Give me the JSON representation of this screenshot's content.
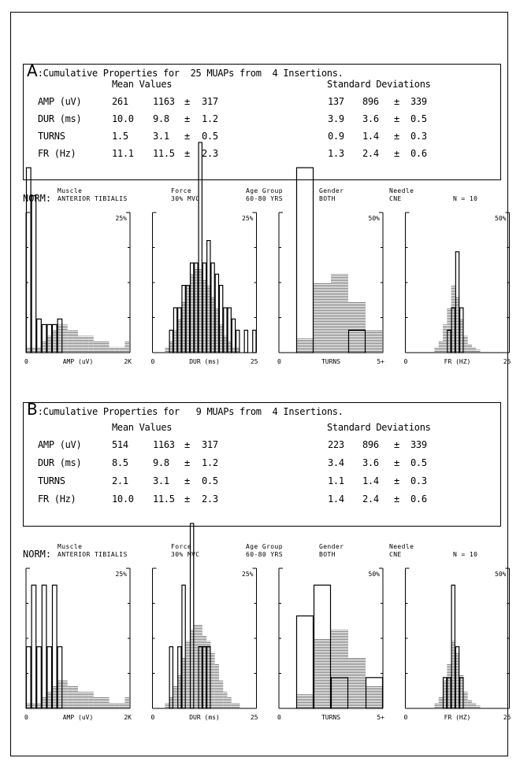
{
  "panels": [
    {
      "letter": "A",
      "title_pre": ":Cumulative Properties for",
      "count": "25",
      "title_mid": "MUAPs from",
      "insertions": "4",
      "title_post": "Insertions.",
      "mean_header": "Mean Values",
      "sd_header": "Standard Deviations",
      "pm": "±",
      "rows": [
        {
          "label": "AMP (uV)",
          "value": "261",
          "mean": "1163",
          "mean_sd": "317",
          "sd": "137",
          "sd_mean": "896",
          "sd_sd": "339"
        },
        {
          "label": "DUR (ms)",
          "value": "10.0",
          "mean": "9.8",
          "mean_sd": "1.2",
          "sd": "3.9",
          "sd_mean": "3.6",
          "sd_sd": "0.5"
        },
        {
          "label": "TURNS",
          "value": "1.5",
          "mean": "3.1",
          "mean_sd": "0.5",
          "sd": "0.9",
          "sd_mean": "1.4",
          "sd_sd": "0.3"
        },
        {
          "label": "FR (Hz)",
          "value": "11.1",
          "mean": "11.5",
          "mean_sd": "2.3",
          "sd": "1.3",
          "sd_mean": "2.4",
          "sd_sd": "0.6"
        }
      ]
    },
    {
      "letter": "B",
      "title_pre": ":Cumulative Properties for",
      "count": "9",
      "title_mid": "MUAPs from",
      "insertions": "4",
      "title_post": "Insertions.",
      "mean_header": "Mean Values",
      "sd_header": "Standard Deviations",
      "pm": "±",
      "rows": [
        {
          "label": "AMP (uV)",
          "value": "514",
          "mean": "1163",
          "mean_sd": "317",
          "sd": "223",
          "sd_mean": "896",
          "sd_sd": "339"
        },
        {
          "label": "DUR (ms)",
          "value": "8.5",
          "mean": "9.8",
          "mean_sd": "1.2",
          "sd": "3.4",
          "sd_mean": "3.6",
          "sd_sd": "0.5"
        },
        {
          "label": "TURNS",
          "value": "2.1",
          "mean": "3.1",
          "mean_sd": "0.5",
          "sd": "1.1",
          "sd_mean": "1.4",
          "sd_sd": "0.3"
        },
        {
          "label": "FR (Hz)",
          "value": "10.0",
          "mean": "11.5",
          "mean_sd": "2.3",
          "sd": "1.4",
          "sd_mean": "2.4",
          "sd_sd": "0.6"
        }
      ]
    }
  ],
  "norm": {
    "label": "NORM:",
    "muscle_h": "Muscle",
    "muscle": "ANTERIOR TIBIALIS",
    "force_h": "Force",
    "force": "30% MVC",
    "age_h": "Age Group",
    "age": "60-80 YRS",
    "gender_h": "Gender",
    "gender": "BOTH",
    "needle_h": "Needle",
    "needle": "CNE",
    "n": "N =  10"
  },
  "chart_data": [
    {
      "type": "bar",
      "panel": "A",
      "histograms": [
        {
          "name": "AMP",
          "xmin": "0",
          "xlabel": "AMP (uV)",
          "xmax": "2K",
          "ymax_label": "25%",
          "ymax": 25,
          "bins": 20,
          "norm": [
            1,
            1,
            1,
            2,
            3,
            4,
            5,
            5,
            4,
            4,
            3,
            3,
            3,
            2,
            2,
            2,
            1,
            1,
            1,
            2
          ],
          "obs": [
            33,
            28,
            6,
            5,
            5,
            5,
            6,
            0,
            0,
            0,
            0,
            0,
            0,
            0,
            0,
            0,
            0,
            0,
            0,
            0
          ]
        },
        {
          "name": "DUR",
          "xmin": "0",
          "xlabel": "DUR (ms)",
          "xmax": "25",
          "ymax_label": "25%",
          "ymax": 25,
          "bins": 25,
          "norm": [
            0,
            0,
            0,
            1,
            2,
            4,
            6,
            9,
            12,
            14,
            15,
            15,
            13,
            12,
            10,
            8,
            5,
            3,
            2,
            1,
            1,
            0,
            0,
            0,
            0
          ],
          "obs": [
            0,
            0,
            0,
            0,
            4,
            8,
            8,
            12,
            12,
            16,
            16,
            38,
            16,
            20,
            16,
            14,
            12,
            8,
            8,
            6,
            4,
            0,
            4,
            0,
            4
          ]
        },
        {
          "name": "TURNS",
          "xmin": "0",
          "xlabel": "TURNS",
          "xmax": "5+",
          "ymax_label": "50%",
          "ymax": 50,
          "bins": 6,
          "norm": [
            0,
            5,
            25,
            28,
            18,
            8
          ],
          "obs": [
            0,
            66,
            0,
            0,
            8,
            0
          ]
        },
        {
          "name": "FR",
          "xmin": "0",
          "xlabel": "FR (HZ)",
          "xmax": "25",
          "ymax_label": "50%",
          "ymax": 50,
          "bins": 25,
          "norm": [
            0,
            0,
            0,
            0,
            0,
            0,
            0,
            2,
            4,
            10,
            16,
            24,
            20,
            12,
            6,
            3,
            2,
            1,
            0,
            0,
            0,
            0,
            0,
            0,
            0
          ],
          "obs": [
            0,
            0,
            0,
            0,
            0,
            0,
            0,
            0,
            0,
            0,
            8,
            16,
            36,
            16,
            0,
            0,
            0,
            0,
            0,
            0,
            0,
            0,
            0,
            0,
            0
          ]
        }
      ]
    },
    {
      "type": "bar",
      "panel": "B",
      "histograms": [
        {
          "name": "AMP",
          "xmin": "0",
          "xlabel": "AMP (uV)",
          "xmax": "2K",
          "ymax_label": "25%",
          "ymax": 25,
          "bins": 20,
          "norm": [
            1,
            1,
            1,
            2,
            3,
            4,
            5,
            5,
            4,
            4,
            3,
            3,
            3,
            2,
            2,
            2,
            1,
            1,
            1,
            2
          ],
          "obs": [
            11,
            22,
            11,
            22,
            11,
            22,
            11,
            0,
            0,
            0,
            0,
            0,
            0,
            0,
            0,
            0,
            0,
            0,
            0,
            0
          ]
        },
        {
          "name": "DUR",
          "xmin": "0",
          "xlabel": "DUR (ms)",
          "xmax": "25",
          "ymax_label": "25%",
          "ymax": 25,
          "bins": 25,
          "norm": [
            0,
            0,
            0,
            1,
            2,
            4,
            6,
            9,
            12,
            14,
            15,
            15,
            13,
            12,
            10,
            8,
            5,
            3,
            2,
            1,
            1,
            0,
            0,
            0,
            0
          ],
          "obs": [
            0,
            0,
            0,
            0,
            11,
            0,
            11,
            22,
            0,
            33,
            0,
            11,
            11,
            11,
            0,
            0,
            0,
            0,
            0,
            0,
            0,
            0,
            0,
            0,
            0
          ]
        },
        {
          "name": "TURNS",
          "xmin": "0",
          "xlabel": "TURNS",
          "xmax": "5+",
          "ymax_label": "50%",
          "ymax": 50,
          "bins": 6,
          "norm": [
            0,
            5,
            25,
            28,
            18,
            8
          ],
          "obs": [
            0,
            33,
            44,
            11,
            0,
            11
          ]
        },
        {
          "name": "FR",
          "xmin": "0",
          "xlabel": "FR (HZ)",
          "xmax": "25",
          "ymax_label": "50%",
          "ymax": 50,
          "bins": 25,
          "norm": [
            0,
            0,
            0,
            0,
            0,
            0,
            0,
            2,
            4,
            10,
            16,
            24,
            20,
            12,
            6,
            3,
            2,
            1,
            0,
            0,
            0,
            0,
            0,
            0,
            0
          ],
          "obs": [
            0,
            0,
            0,
            0,
            0,
            0,
            0,
            0,
            0,
            11,
            11,
            44,
            22,
            11,
            0,
            0,
            0,
            0,
            0,
            0,
            0,
            0,
            0,
            0,
            0
          ]
        }
      ]
    }
  ]
}
